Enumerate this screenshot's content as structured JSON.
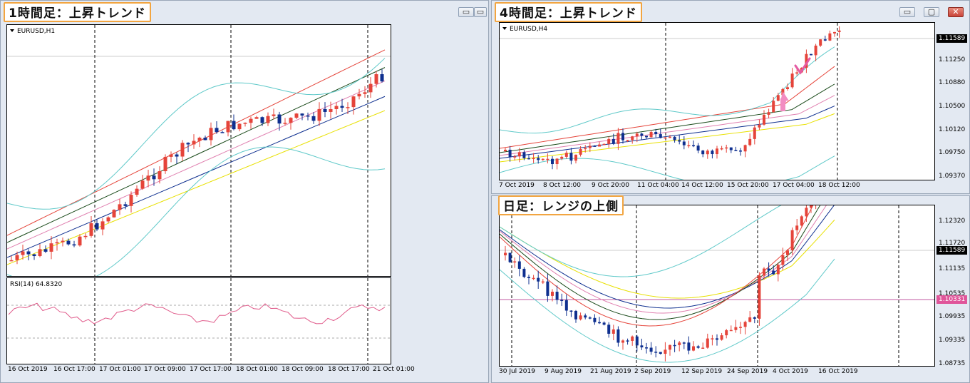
{
  "windows": [
    {
      "id": "w1",
      "title": "1時間足：上昇トレンド",
      "symbol": "EURUSD,H1",
      "indicator": "RSI(14) 64.8320",
      "x_labels": [
        "16 Oct 2019",
        "16 Oct 17:00",
        "17 Oct 01:00",
        "17 Oct 09:00",
        "17 Oct 17:00",
        "18 Oct 01:00",
        "18 Oct 09:00",
        "18 Oct 17:00",
        "21 Oct 01:00"
      ],
      "y_labels": [],
      "current_price": ""
    },
    {
      "id": "w2",
      "title": "4時間足：上昇トレンド",
      "symbol": "EURUSD,H4",
      "x_labels": [
        "7 Oct 2019",
        "8 Oct 12:00",
        "9 Oct 20:00",
        "11 Oct 04:00",
        "14 Oct 12:00",
        "15 Oct 20:00",
        "17 Oct 04:00",
        "18 Oct 12:00"
      ],
      "y_labels": [
        "1.11250",
        "1.10880",
        "1.10500",
        "1.10120",
        "1.09750",
        "1.09370"
      ],
      "current_price": "1.11589"
    },
    {
      "id": "w3",
      "title": "日足：レンジの上側",
      "symbol": "",
      "x_labels": [
        "30 Jul 2019",
        "9 Aug 2019",
        "21 Aug 2019",
        "2 Sep 2019",
        "12 Sep 2019",
        "24 Sep 2019",
        "4 Oct 2019",
        "16 Oct 2019"
      ],
      "y_labels": [
        "1.12320",
        "1.11720",
        "1.11135",
        "1.10535",
        "1.09935",
        "1.09335",
        "1.08735"
      ],
      "current_price": "1.11589",
      "pink_price": "1.10331"
    }
  ],
  "colors": {
    "bull": "#e5443a",
    "bear": "#0e2f8f",
    "badge_border": "#f2a541",
    "annotation_pink": "#f28cc2"
  },
  "icons": {
    "window_minimize": "▭",
    "window_maximize": "▢",
    "window_close": "✕",
    "window_restore": "▭",
    "annotation_arrow": "arrow-up-right",
    "annotation_check": "check-mark"
  }
}
